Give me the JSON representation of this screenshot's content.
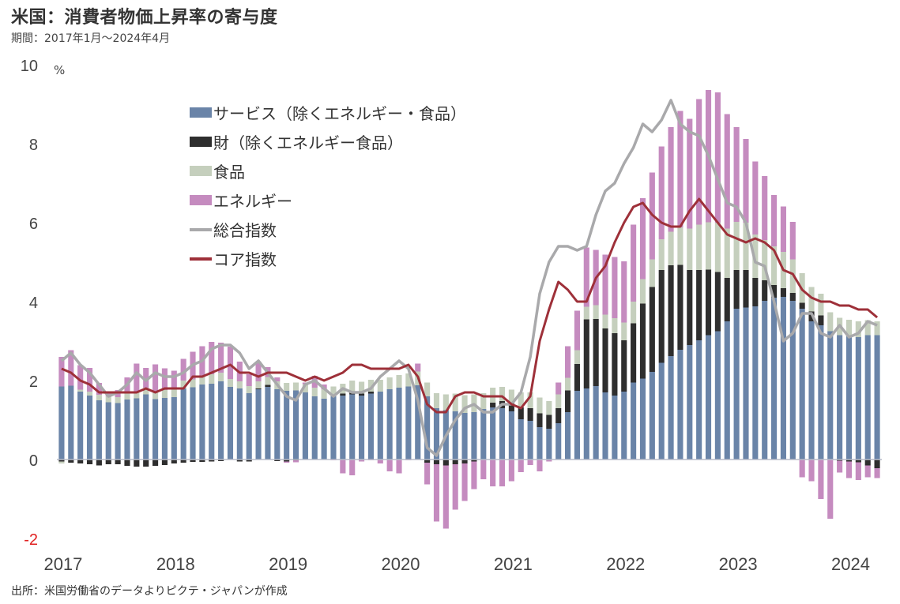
{
  "header": {
    "title": "米国：消費者物価上昇率の寄与度",
    "subtitle": "期間：2017年1月～2024年4月",
    "unit": "%",
    "source": "出所：米国労働省のデータよりピクテ・ジャパンが作成"
  },
  "colors": {
    "services": "#6a84a8",
    "goods": "#2e2e2e",
    "food": "#c5cfbd",
    "energy": "#c58bbf",
    "headline": "#a9a9ab",
    "core": "#9e3039",
    "negative_tick": "#e02020"
  },
  "chart_data": {
    "type": "bar",
    "stacked": true,
    "title": "米国：消費者物価上昇率の寄与度",
    "subtitle": "期間：2017年1月～2024年4月",
    "xlabel": "",
    "ylabel": "%",
    "ylim": [
      -2,
      10
    ],
    "yticks": [
      -2,
      0,
      2,
      4,
      6,
      8,
      10
    ],
    "ytick_labels": [
      "-2",
      "0",
      "2",
      "4",
      "6",
      "8",
      "10"
    ],
    "xtick_labels": [
      "2017",
      "2018",
      "2019",
      "2020",
      "2021",
      "2022",
      "2023",
      "2024"
    ],
    "start": "2017-01",
    "end": "2024-04",
    "grid": false,
    "legend_position": "top-left",
    "legend": [
      "サービス（除くエネルギー・食品）",
      "財（除くエネルギー食品）",
      "食品",
      "エネルギー",
      "総合指数",
      "コア指数"
    ],
    "series": [
      {
        "name": "サービス（除くエネルギー・食品）",
        "kind": "bar",
        "values": [
          1.85,
          1.87,
          1.72,
          1.62,
          1.5,
          1.45,
          1.43,
          1.52,
          1.55,
          1.65,
          1.53,
          1.56,
          1.58,
          1.8,
          1.83,
          1.9,
          1.92,
          1.98,
          1.84,
          1.8,
          1.68,
          1.78,
          1.84,
          1.78,
          1.74,
          1.75,
          1.7,
          1.6,
          1.54,
          1.6,
          1.62,
          1.65,
          1.62,
          1.67,
          1.72,
          1.78,
          1.82,
          1.85,
          1.88,
          1.6,
          1.3,
          1.25,
          1.22,
          1.18,
          1.2,
          1.28,
          1.32,
          1.3,
          1.22,
          1.02,
          0.98,
          0.82,
          0.78,
          0.92,
          1.2,
          1.74,
          1.8,
          1.86,
          1.7,
          1.62,
          1.72,
          1.95,
          2.05,
          2.22,
          2.45,
          2.62,
          2.78,
          2.9,
          3.02,
          3.15,
          3.25,
          3.5,
          3.82,
          3.85,
          3.88,
          4.02,
          4.1,
          4.12,
          4.02,
          3.82,
          3.5,
          3.4,
          3.25,
          3.15,
          3.12,
          3.1,
          3.15,
          3.15
        ]
      },
      {
        "name": "財（除くエネルギー食品）",
        "kind": "bar",
        "values": [
          -0.05,
          -0.08,
          -0.1,
          -0.12,
          -0.15,
          -0.12,
          -0.12,
          -0.16,
          -0.18,
          -0.18,
          -0.16,
          -0.14,
          -0.1,
          -0.08,
          -0.06,
          -0.06,
          -0.05,
          -0.04,
          0.0,
          -0.05,
          -0.05,
          0.02,
          0.05,
          -0.04,
          -0.05,
          -0.02,
          0.0,
          0.0,
          0.0,
          0.0,
          0.05,
          0.08,
          0.05,
          0.05,
          0.0,
          0.0,
          0.0,
          0.0,
          0.0,
          -0.08,
          -0.12,
          -0.15,
          -0.12,
          -0.1,
          -0.05,
          0.0,
          0.12,
          0.18,
          0.2,
          0.3,
          0.32,
          0.35,
          0.35,
          0.38,
          0.55,
          0.68,
          1.75,
          1.7,
          1.62,
          1.58,
          1.3,
          1.5,
          1.9,
          2.15,
          2.35,
          2.3,
          2.15,
          1.9,
          1.78,
          1.66,
          1.5,
          1.1,
          0.98,
          0.95,
          0.72,
          0.52,
          0.32,
          0.22,
          0.2,
          0.15,
          0.25,
          0.25,
          0.0,
          -0.03,
          -0.05,
          -0.07,
          -0.15,
          -0.22
        ]
      },
      {
        "name": "食品",
        "kind": "bar",
        "values": [
          -0.05,
          0.0,
          0.05,
          0.1,
          0.14,
          0.15,
          0.15,
          0.16,
          0.16,
          0.17,
          0.2,
          0.2,
          0.22,
          0.2,
          0.2,
          0.22,
          0.24,
          0.22,
          0.2,
          0.18,
          0.18,
          0.18,
          0.2,
          0.2,
          0.2,
          0.2,
          0.21,
          0.22,
          0.24,
          0.25,
          0.25,
          0.27,
          0.3,
          0.3,
          0.3,
          0.3,
          0.32,
          0.33,
          0.35,
          0.35,
          0.38,
          0.4,
          0.45,
          0.45,
          0.45,
          0.4,
          0.38,
          0.36,
          0.35,
          0.38,
          0.4,
          0.4,
          0.35,
          0.35,
          0.32,
          0.35,
          0.32,
          0.35,
          0.35,
          0.38,
          0.45,
          0.55,
          0.62,
          0.7,
          0.78,
          0.85,
          0.95,
          1.05,
          1.15,
          1.2,
          1.25,
          1.25,
          1.22,
          1.2,
          1.1,
          1.02,
          0.98,
          0.92,
          0.85,
          0.75,
          0.62,
          0.55,
          0.48,
          0.44,
          0.42,
          0.4,
          0.38,
          0.35
        ]
      },
      {
        "name": "エネルギー",
        "kind": "bar",
        "values": [
          0.75,
          0.9,
          0.62,
          0.6,
          0.3,
          0.1,
          0.18,
          0.4,
          0.72,
          0.5,
          0.68,
          0.55,
          0.45,
          0.55,
          0.7,
          0.75,
          0.82,
          0.76,
          0.82,
          0.5,
          0.3,
          0.5,
          0.25,
          0.1,
          -0.03,
          -0.05,
          0.04,
          0.3,
          0.12,
          -0.02,
          -0.35,
          -0.4,
          -0.05,
          -0.02,
          -0.1,
          -0.3,
          -0.35,
          -0.02,
          0.2,
          -0.55,
          -1.45,
          -1.6,
          -1.15,
          -0.95,
          -0.7,
          -0.5,
          -0.68,
          -0.68,
          -0.55,
          -0.32,
          -0.14,
          -0.3,
          -0.05,
          0.3,
          0.8,
          1.0,
          1.5,
          1.4,
          1.52,
          1.55,
          1.55,
          1.95,
          2.05,
          2.2,
          2.35,
          2.65,
          2.95,
          2.78,
          3.18,
          3.35,
          3.3,
          2.9,
          2.4,
          2.12,
          1.85,
          1.62,
          1.3,
          1.15,
          0.95,
          -0.45,
          -0.55,
          -1.0,
          -1.5,
          -0.3,
          -0.42,
          -0.45,
          -0.3,
          -0.25
        ]
      },
      {
        "name": "総合指数",
        "kind": "line",
        "values": [
          2.5,
          2.7,
          2.4,
          2.2,
          1.9,
          1.6,
          1.7,
          1.9,
          2.2,
          2.0,
          2.2,
          2.1,
          2.1,
          2.2,
          2.4,
          2.5,
          2.8,
          2.9,
          2.9,
          2.7,
          2.3,
          2.5,
          2.2,
          1.9,
          1.6,
          1.5,
          1.9,
          2.0,
          1.8,
          1.6,
          1.8,
          1.7,
          1.7,
          1.8,
          2.1,
          2.3,
          2.5,
          2.3,
          1.5,
          0.3,
          0.1,
          0.6,
          1.0,
          1.3,
          1.4,
          1.2,
          1.2,
          1.4,
          1.4,
          1.7,
          2.6,
          4.2,
          5.0,
          5.4,
          5.4,
          5.3,
          5.4,
          6.2,
          6.8,
          7.0,
          7.5,
          7.9,
          8.5,
          8.3,
          8.6,
          9.1,
          8.5,
          8.3,
          8.2,
          7.7,
          7.1,
          6.5,
          6.4,
          6.0,
          5.0,
          4.9,
          4.0,
          3.0,
          3.2,
          3.7,
          3.7,
          3.2,
          3.1,
          3.4,
          3.1,
          3.2,
          3.5,
          3.4
        ]
      },
      {
        "name": "コア指数",
        "kind": "line",
        "values": [
          2.3,
          2.2,
          2.0,
          1.9,
          1.7,
          1.7,
          1.7,
          1.7,
          1.7,
          1.8,
          1.7,
          1.8,
          1.8,
          1.8,
          2.1,
          2.1,
          2.2,
          2.3,
          2.4,
          2.2,
          2.2,
          2.1,
          2.2,
          2.2,
          2.2,
          2.1,
          2.0,
          2.1,
          2.0,
          2.1,
          2.2,
          2.4,
          2.4,
          2.3,
          2.3,
          2.3,
          2.3,
          2.4,
          2.1,
          1.4,
          1.2,
          1.2,
          1.6,
          1.7,
          1.7,
          1.6,
          1.6,
          1.6,
          1.4,
          1.3,
          1.6,
          3.0,
          3.8,
          4.5,
          4.3,
          4.0,
          4.0,
          4.6,
          4.9,
          5.5,
          6.0,
          6.4,
          6.5,
          6.2,
          6.0,
          5.9,
          5.9,
          6.3,
          6.6,
          6.3,
          6.0,
          5.7,
          5.6,
          5.5,
          5.6,
          5.5,
          5.3,
          4.8,
          4.7,
          4.3,
          4.1,
          4.0,
          4.0,
          3.9,
          3.9,
          3.8,
          3.8,
          3.6
        ]
      }
    ]
  }
}
